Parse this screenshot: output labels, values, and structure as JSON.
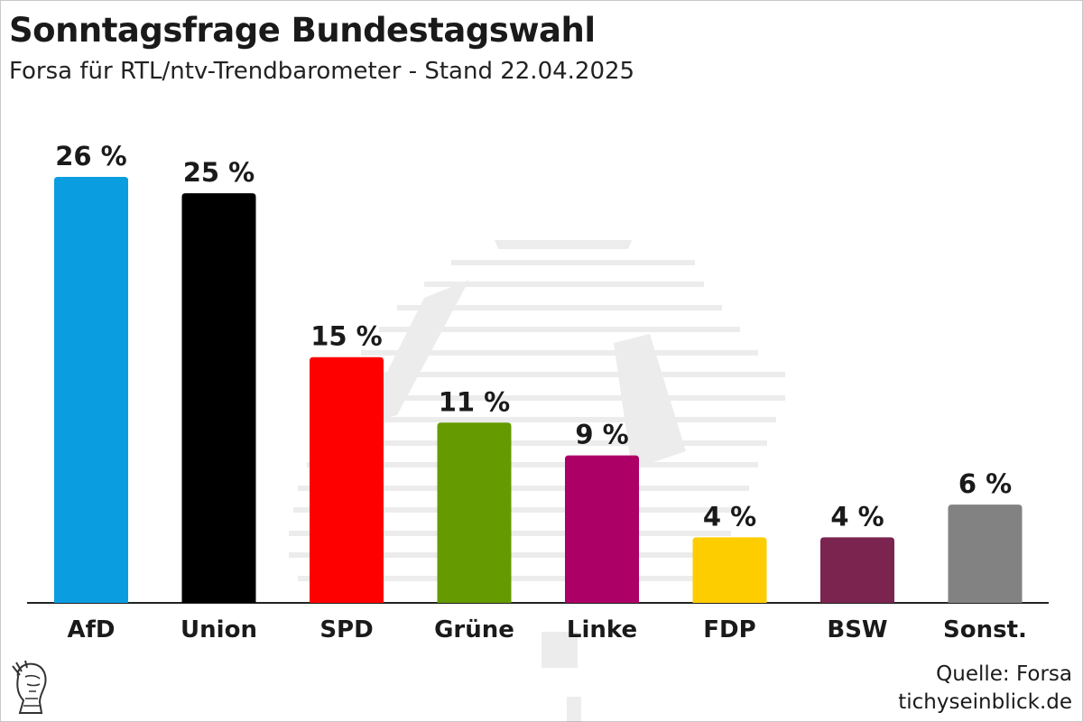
{
  "header": {
    "title": "Sonntagsfrage Bundestagswahl",
    "subtitle": "Forsa für RTL/ntv-Trendbarometer - Stand 22.04.2025"
  },
  "footer": {
    "source": "Quelle: Forsa",
    "site": "tichyseinblick.de",
    "logo_icon": "hermes-head-icon",
    "watermark_icon": "bundestag-eagle-icon"
  },
  "chart_data": {
    "type": "bar",
    "title": "Sonntagsfrage Bundestagswahl",
    "subtitle": "Forsa für RTL/ntv-Trendbarometer - Stand 22.04.2025",
    "xlabel": "",
    "ylabel": "",
    "ylim": [
      0,
      26
    ],
    "grid": false,
    "value_suffix": " %",
    "categories": [
      "AfD",
      "Union",
      "SPD",
      "Grüne",
      "Linke",
      "FDP",
      "BSW",
      "Sonst."
    ],
    "values": [
      26,
      25,
      15,
      11,
      9,
      4,
      4,
      6
    ],
    "colors": [
      "#0a9de0",
      "#000000",
      "#fe0000",
      "#659a00",
      "#ad0067",
      "#fecd00",
      "#7b2450",
      "#828282"
    ]
  }
}
